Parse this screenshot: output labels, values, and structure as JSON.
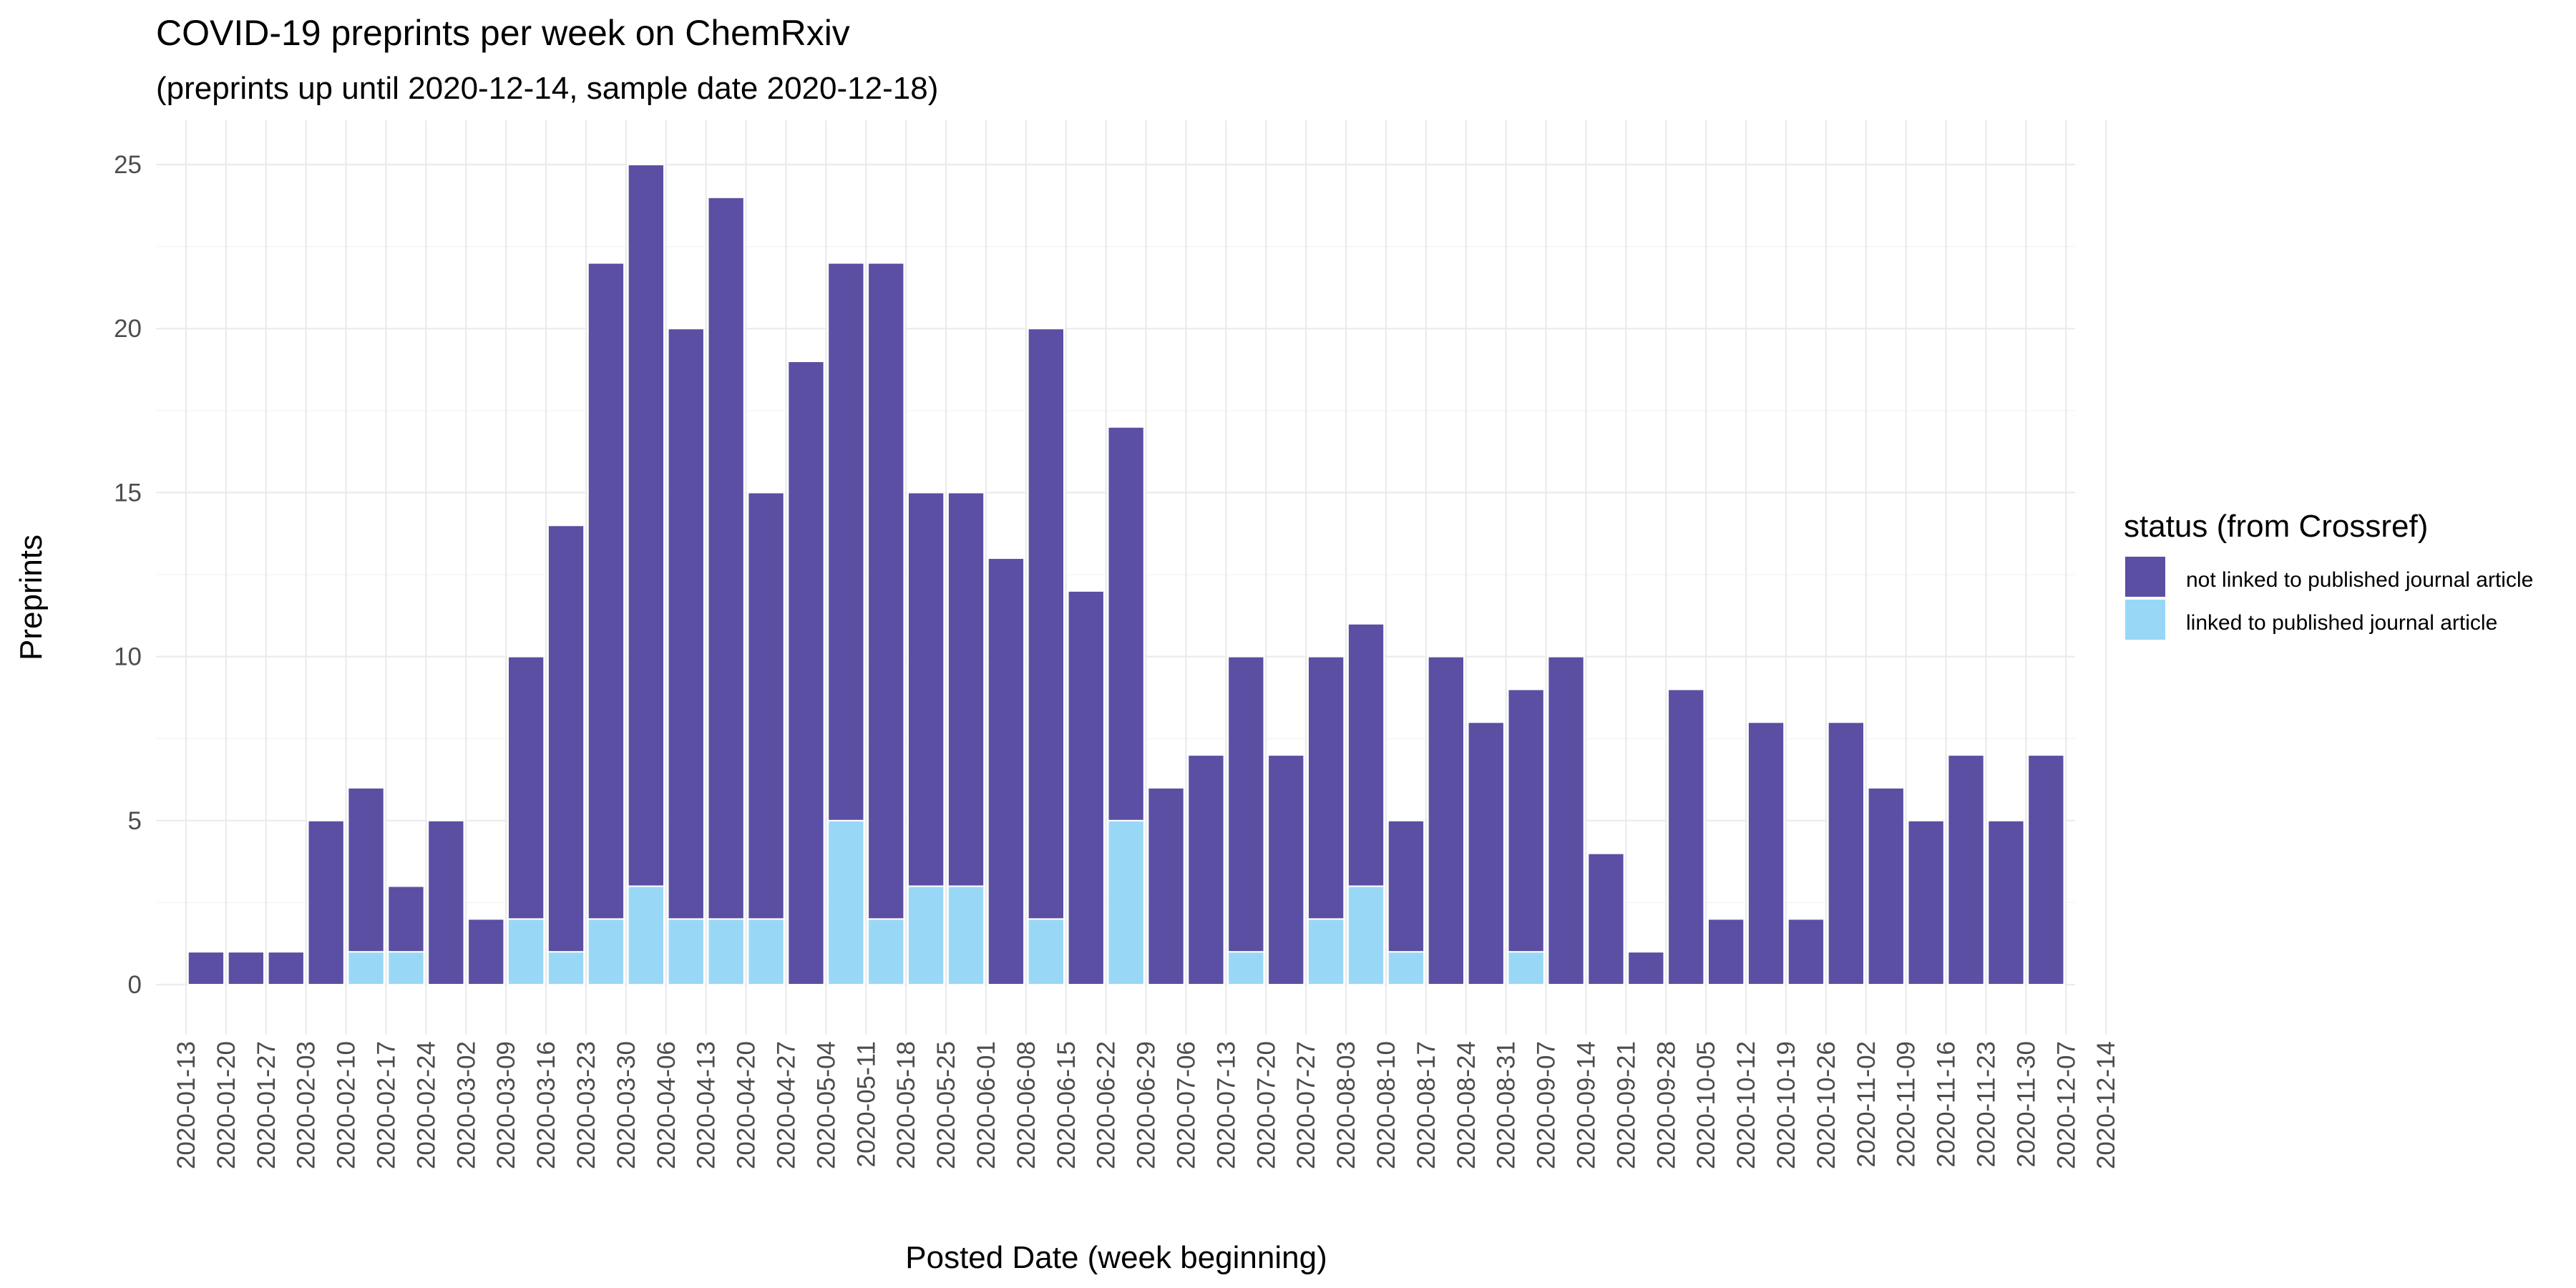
{
  "chart_data": {
    "type": "bar",
    "stacked": true,
    "title": "COVID-19 preprints per week on ChemRxiv",
    "subtitle": "(preprints up until 2020-12-14, sample date 2020-12-18)",
    "xlabel": "Posted Date (week beginning)",
    "ylabel": "Preprints",
    "ylim": [
      0,
      26
    ],
    "yticks": [
      0,
      5,
      10,
      15,
      20,
      25
    ],
    "x_tick_labels": [
      "2020-01-13",
      "2020-01-20",
      "2020-01-27",
      "2020-02-03",
      "2020-02-10",
      "2020-02-17",
      "2020-02-24",
      "2020-03-02",
      "2020-03-09",
      "2020-03-16",
      "2020-03-23",
      "2020-03-30",
      "2020-04-06",
      "2020-04-13",
      "2020-04-20",
      "2020-04-27",
      "2020-05-04",
      "2020-05-11",
      "2020-05-18",
      "2020-05-25",
      "2020-06-01",
      "2020-06-08",
      "2020-06-15",
      "2020-06-22",
      "2020-06-29",
      "2020-07-06",
      "2020-07-13",
      "2020-07-20",
      "2020-07-27",
      "2020-08-03",
      "2020-08-10",
      "2020-08-17",
      "2020-08-24",
      "2020-08-31",
      "2020-09-07",
      "2020-09-14",
      "2020-09-21",
      "2020-09-28",
      "2020-10-05",
      "2020-10-12",
      "2020-10-19",
      "2020-10-26",
      "2020-11-02",
      "2020-11-09",
      "2020-11-16",
      "2020-11-23",
      "2020-11-30",
      "2020-12-07",
      "2020-12-14"
    ],
    "categories": [
      "2020-01-13",
      "2020-01-20",
      "2020-01-27",
      "2020-02-03",
      "2020-02-10",
      "2020-02-17",
      "2020-02-24",
      "2020-03-02",
      "2020-03-09",
      "2020-03-16",
      "2020-03-23",
      "2020-03-30",
      "2020-04-06",
      "2020-04-13",
      "2020-04-20",
      "2020-04-27",
      "2020-05-04",
      "2020-05-11",
      "2020-05-18",
      "2020-05-25",
      "2020-06-01",
      "2020-06-08",
      "2020-06-15",
      "2020-06-22",
      "2020-06-29",
      "2020-07-06",
      "2020-07-13",
      "2020-07-20",
      "2020-07-27",
      "2020-08-03",
      "2020-08-10",
      "2020-08-17",
      "2020-08-24",
      "2020-08-31",
      "2020-09-07",
      "2020-09-14",
      "2020-09-21",
      "2020-09-28",
      "2020-10-05",
      "2020-10-12",
      "2020-10-19",
      "2020-10-26",
      "2020-11-02",
      "2020-11-09",
      "2020-11-16",
      "2020-11-23",
      "2020-11-30",
      "2020-12-07"
    ],
    "series": [
      {
        "name": "linked to published journal article",
        "color": "#99d7f7",
        "values": [
          0,
          0,
          0,
          0,
          1,
          1,
          0,
          0,
          2,
          1,
          2,
          3,
          2,
          2,
          2,
          0,
          5,
          2,
          3,
          3,
          0,
          2,
          0,
          5,
          0,
          0,
          1,
          0,
          2,
          3,
          1,
          0,
          0,
          1,
          0,
          0,
          0,
          0,
          0,
          0,
          0,
          0,
          0,
          0,
          0,
          0,
          0,
          0
        ]
      },
      {
        "name": "not linked to published journal article",
        "color": "#5a4fa2",
        "values": [
          1,
          1,
          1,
          5,
          5,
          2,
          5,
          2,
          8,
          13,
          20,
          22,
          18,
          22,
          13,
          19,
          17,
          20,
          12,
          12,
          13,
          18,
          12,
          12,
          6,
          7,
          9,
          7,
          8,
          8,
          4,
          10,
          8,
          8,
          10,
          4,
          1,
          9,
          2,
          8,
          2,
          8,
          6,
          5,
          7,
          5,
          7,
          0
        ]
      }
    ],
    "totals": [
      1,
      1,
      1,
      5,
      6,
      3,
      5,
      2,
      10,
      14,
      22,
      25,
      20,
      24,
      15,
      19,
      22,
      22,
      15,
      15,
      13,
      20,
      12,
      17,
      6,
      7,
      10,
      7,
      10,
      11,
      5,
      10,
      8,
      9,
      10,
      4,
      1,
      9,
      2,
      8,
      2,
      8,
      6,
      5,
      7,
      5,
      7,
      0
    ],
    "legend": {
      "title": "status (from Crossref)",
      "position": "right",
      "items": [
        {
          "label": "not linked to published journal article",
          "color": "#5a4fa2"
        },
        {
          "label": "linked to published journal article",
          "color": "#99d7f7"
        }
      ]
    },
    "grid": true
  }
}
